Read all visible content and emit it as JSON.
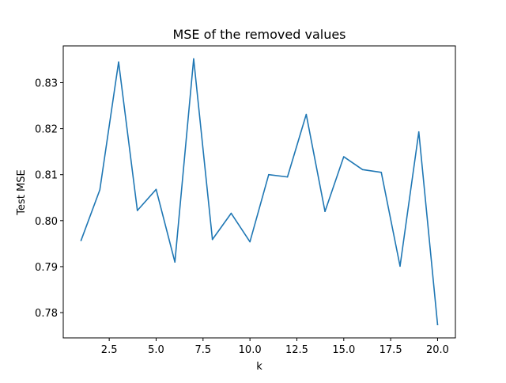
{
  "chart_data": {
    "type": "line",
    "title": "MSE of the removed values",
    "xlabel": "k",
    "ylabel": "Test MSE",
    "xlim": [
      0.05,
      20.95
    ],
    "ylim": [
      0.7745,
      0.838
    ],
    "x_ticks": [
      2.5,
      5.0,
      7.5,
      10.0,
      12.5,
      15.0,
      17.5,
      20.0
    ],
    "x_tick_labels": [
      "2.5",
      "5.0",
      "7.5",
      "10.0",
      "12.5",
      "15.0",
      "17.5",
      "20.0"
    ],
    "y_ticks": [
      0.78,
      0.79,
      0.8,
      0.81,
      0.82,
      0.83
    ],
    "y_tick_labels": [
      "0.78",
      "0.79",
      "0.80",
      "0.81",
      "0.82",
      "0.83"
    ],
    "grid": false,
    "line_color": "#1f77b4",
    "series": [
      {
        "x": [
          1,
          2,
          3,
          4,
          5,
          6,
          7,
          8,
          9,
          10,
          11,
          12,
          13,
          14,
          15,
          16,
          17,
          18,
          19,
          20
        ],
        "values": [
          0.7957,
          0.8067,
          0.8345,
          0.8022,
          0.8068,
          0.791,
          0.8352,
          0.7959,
          0.8016,
          0.7954,
          0.81,
          0.8095,
          0.8231,
          0.802,
          0.8139,
          0.8111,
          0.8105,
          0.7901,
          0.8193,
          0.7774
        ]
      }
    ]
  }
}
